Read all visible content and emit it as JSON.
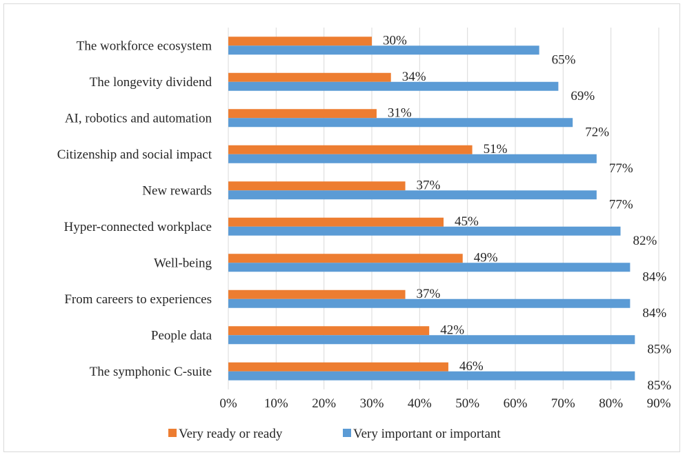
{
  "chart_data": {
    "type": "bar",
    "orientation": "horizontal",
    "categories": [
      "The workforce ecosystem",
      "The longevity dividend",
      "AI, robotics and automation",
      "Citizenship and social impact",
      "New rewards",
      "Hyper-connected workplace",
      "Well-being",
      "From careers to experiences",
      "People data",
      "The symphonic C-suite"
    ],
    "series": [
      {
        "name": "Very ready or ready",
        "color": "#ed7d31",
        "values": [
          30,
          34,
          31,
          51,
          37,
          45,
          49,
          37,
          42,
          46
        ],
        "labels": [
          "30%",
          "34%",
          "31%",
          "51%",
          "37%",
          "45%",
          "49%",
          "37%",
          "42%",
          "46%"
        ]
      },
      {
        "name": "Very important or important",
        "color": "#5b9bd5",
        "values": [
          65,
          69,
          72,
          77,
          77,
          82,
          84,
          84,
          85,
          85
        ],
        "labels": [
          "65%",
          "69%",
          "72%",
          "77%",
          "77%",
          "82%",
          "84%",
          "84%",
          "85%",
          "85%"
        ]
      }
    ],
    "xlim": [
      0,
      90
    ],
    "x_ticks": [
      "0%",
      "10%",
      "20%",
      "30%",
      "40%",
      "50%",
      "60%",
      "70%",
      "80%",
      "90%"
    ],
    "grid": true,
    "legend_position": "bottom",
    "title": "",
    "xlabel": "",
    "ylabel": ""
  }
}
